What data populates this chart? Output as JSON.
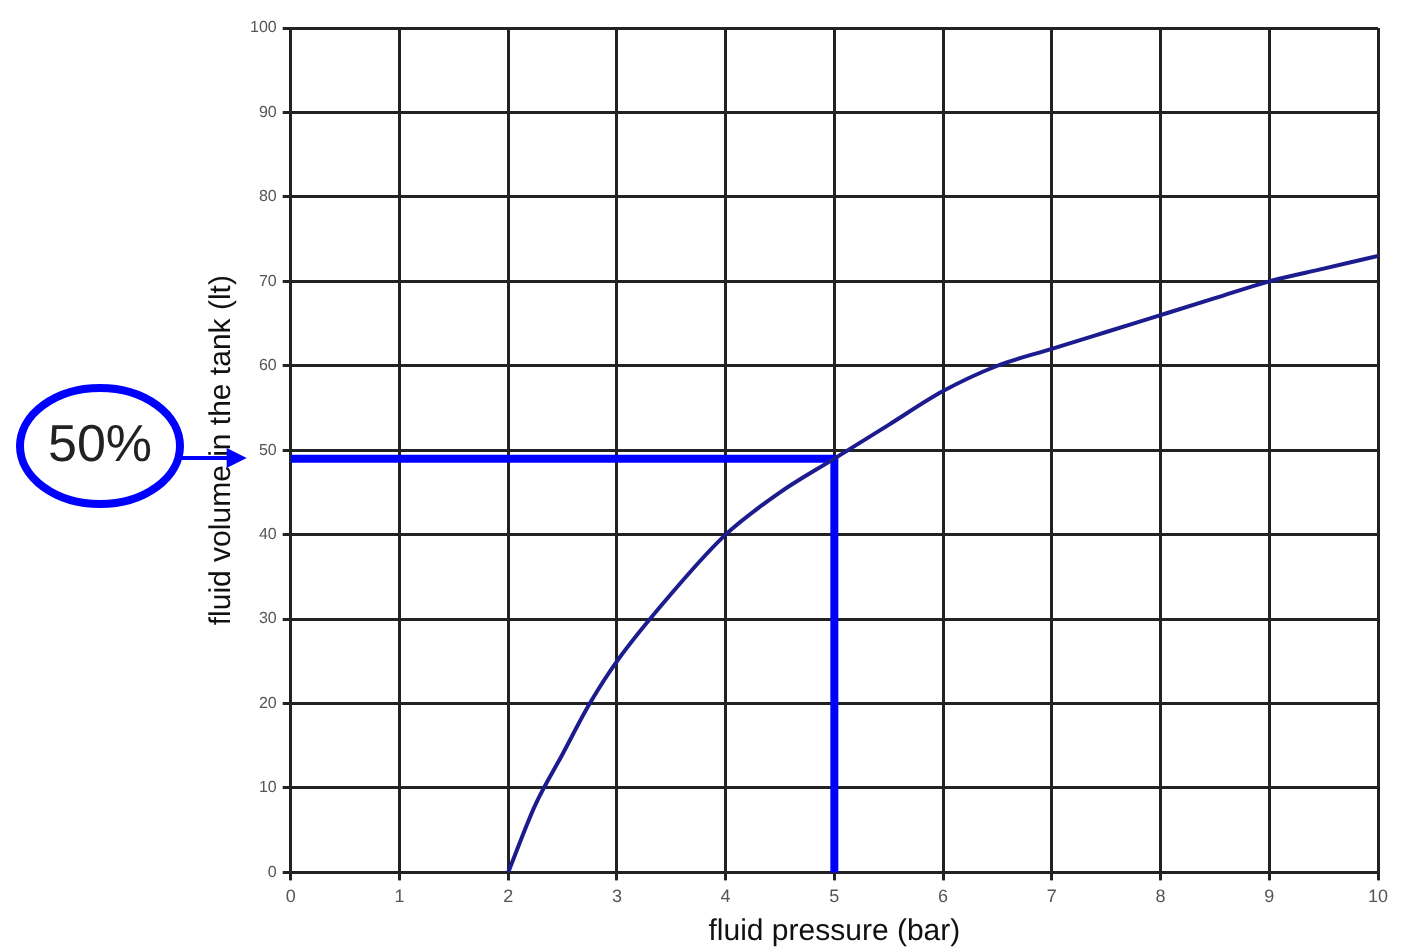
{
  "chart_data": {
    "type": "line",
    "xlabel": "fluid pressure (bar)",
    "ylabel": "fluid volume in the tank (lt)",
    "xlim": [
      0,
      10
    ],
    "xticks": [
      0,
      1,
      2,
      3,
      4,
      5,
      6,
      7,
      8,
      9,
      10
    ],
    "ylim": [
      0,
      100
    ],
    "yticks": [
      0,
      10,
      20,
      30,
      40,
      50,
      60,
      70,
      80,
      90,
      100
    ],
    "grid": true,
    "legend": false,
    "marker": "none",
    "line_style": "solid",
    "series": [
      {
        "color": "#1c1c8f",
        "x": [
          2,
          2.25,
          2.5,
          2.75,
          3,
          3.5,
          4,
          4.5,
          5,
          5.5,
          6,
          6.5,
          7,
          7.5,
          8,
          8.5,
          9,
          9.5,
          10
        ],
        "values": [
          0,
          8,
          14,
          20,
          25,
          33,
          40,
          45,
          49,
          53,
          57,
          60,
          62,
          64,
          66,
          68,
          70,
          71.5,
          73
        ]
      },
      {
        "color": "#0000ff",
        "x": [
          0,
          5,
          5
        ],
        "values": [
          49,
          49,
          0
        ]
      }
    ],
    "annotations": [
      {
        "text": "50%",
        "x": 0,
        "y": 49
      }
    ]
  }
}
